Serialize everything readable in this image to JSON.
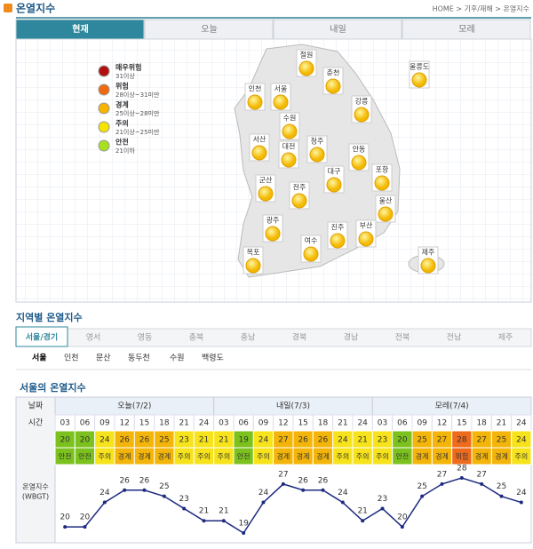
{
  "header": {
    "title": "온열지수",
    "breadcrumb": "HOME > 기후/재해 > 온열지수"
  },
  "tabs": {
    "items": [
      "현재",
      "오늘",
      "내일",
      "모레"
    ],
    "active": 0
  },
  "legend": [
    {
      "label": "매우위험",
      "range": "31이상",
      "color": "#b01010"
    },
    {
      "label": "위험",
      "range": "28이상~31미만",
      "color": "#f06a10"
    },
    {
      "label": "경계",
      "range": "25이상~28미만",
      "color": "#f6b400"
    },
    {
      "label": "주의",
      "range": "21이상~25미만",
      "color": "#f6e400"
    },
    {
      "label": "안전",
      "range": "21이하",
      "color": "#a8e020"
    }
  ],
  "map": {
    "cities": [
      "철원",
      "춘천",
      "울릉도",
      "인천",
      "서울",
      "강릉",
      "수원",
      "서산",
      "청주",
      "대전",
      "안동",
      "대구",
      "포항",
      "군산",
      "전주",
      "울산",
      "광주",
      "진주",
      "부산",
      "목포",
      "여수",
      "제주"
    ]
  },
  "regional": {
    "title": "지역별 온열지수",
    "regions": [
      "서울/경기",
      "영서",
      "영동",
      "충북",
      "충남",
      "경북",
      "경남",
      "전북",
      "전남",
      "제주"
    ],
    "active_region": 0,
    "stations": [
      "서울",
      "인천",
      "문산",
      "동두천",
      "수원",
      "백령도"
    ],
    "active_station": 0
  },
  "forecast": {
    "title": "서울의 온열지수",
    "date_label": "날짜",
    "time_label": "시간",
    "index_label": [
      "온열지수",
      "(WBGT)"
    ],
    "level_colors": {
      "안전": "#7cc21e",
      "주의": "#f7e31c",
      "경계": "#f4b50a",
      "위험": "#ee6a1c"
    },
    "days": [
      {
        "label": "오늘(7/2)",
        "hours": [
          "03",
          "06",
          "09",
          "12",
          "15",
          "18",
          "21",
          "24"
        ],
        "values": [
          20,
          20,
          24,
          26,
          26,
          25,
          23,
          21
        ],
        "levels": [
          "안전",
          "안전",
          "주의",
          "경계",
          "경계",
          "경계",
          "주의",
          "주의"
        ]
      },
      {
        "label": "내일(7/3)",
        "hours": [
          "03",
          "06",
          "09",
          "12",
          "15",
          "18",
          "21",
          "24"
        ],
        "values": [
          21,
          19,
          24,
          27,
          26,
          26,
          24,
          21
        ],
        "levels": [
          "주의",
          "안전",
          "주의",
          "경계",
          "경계",
          "경계",
          "주의",
          "주의"
        ]
      },
      {
        "label": "모레(7/4)",
        "hours": [
          "03",
          "06",
          "09",
          "12",
          "15",
          "18",
          "21",
          "24"
        ],
        "values": [
          23,
          20,
          25,
          27,
          28,
          27,
          25,
          24
        ],
        "levels": [
          "주의",
          "안전",
          "경계",
          "경계",
          "위험",
          "경계",
          "경계",
          "주의"
        ]
      }
    ]
  }
}
